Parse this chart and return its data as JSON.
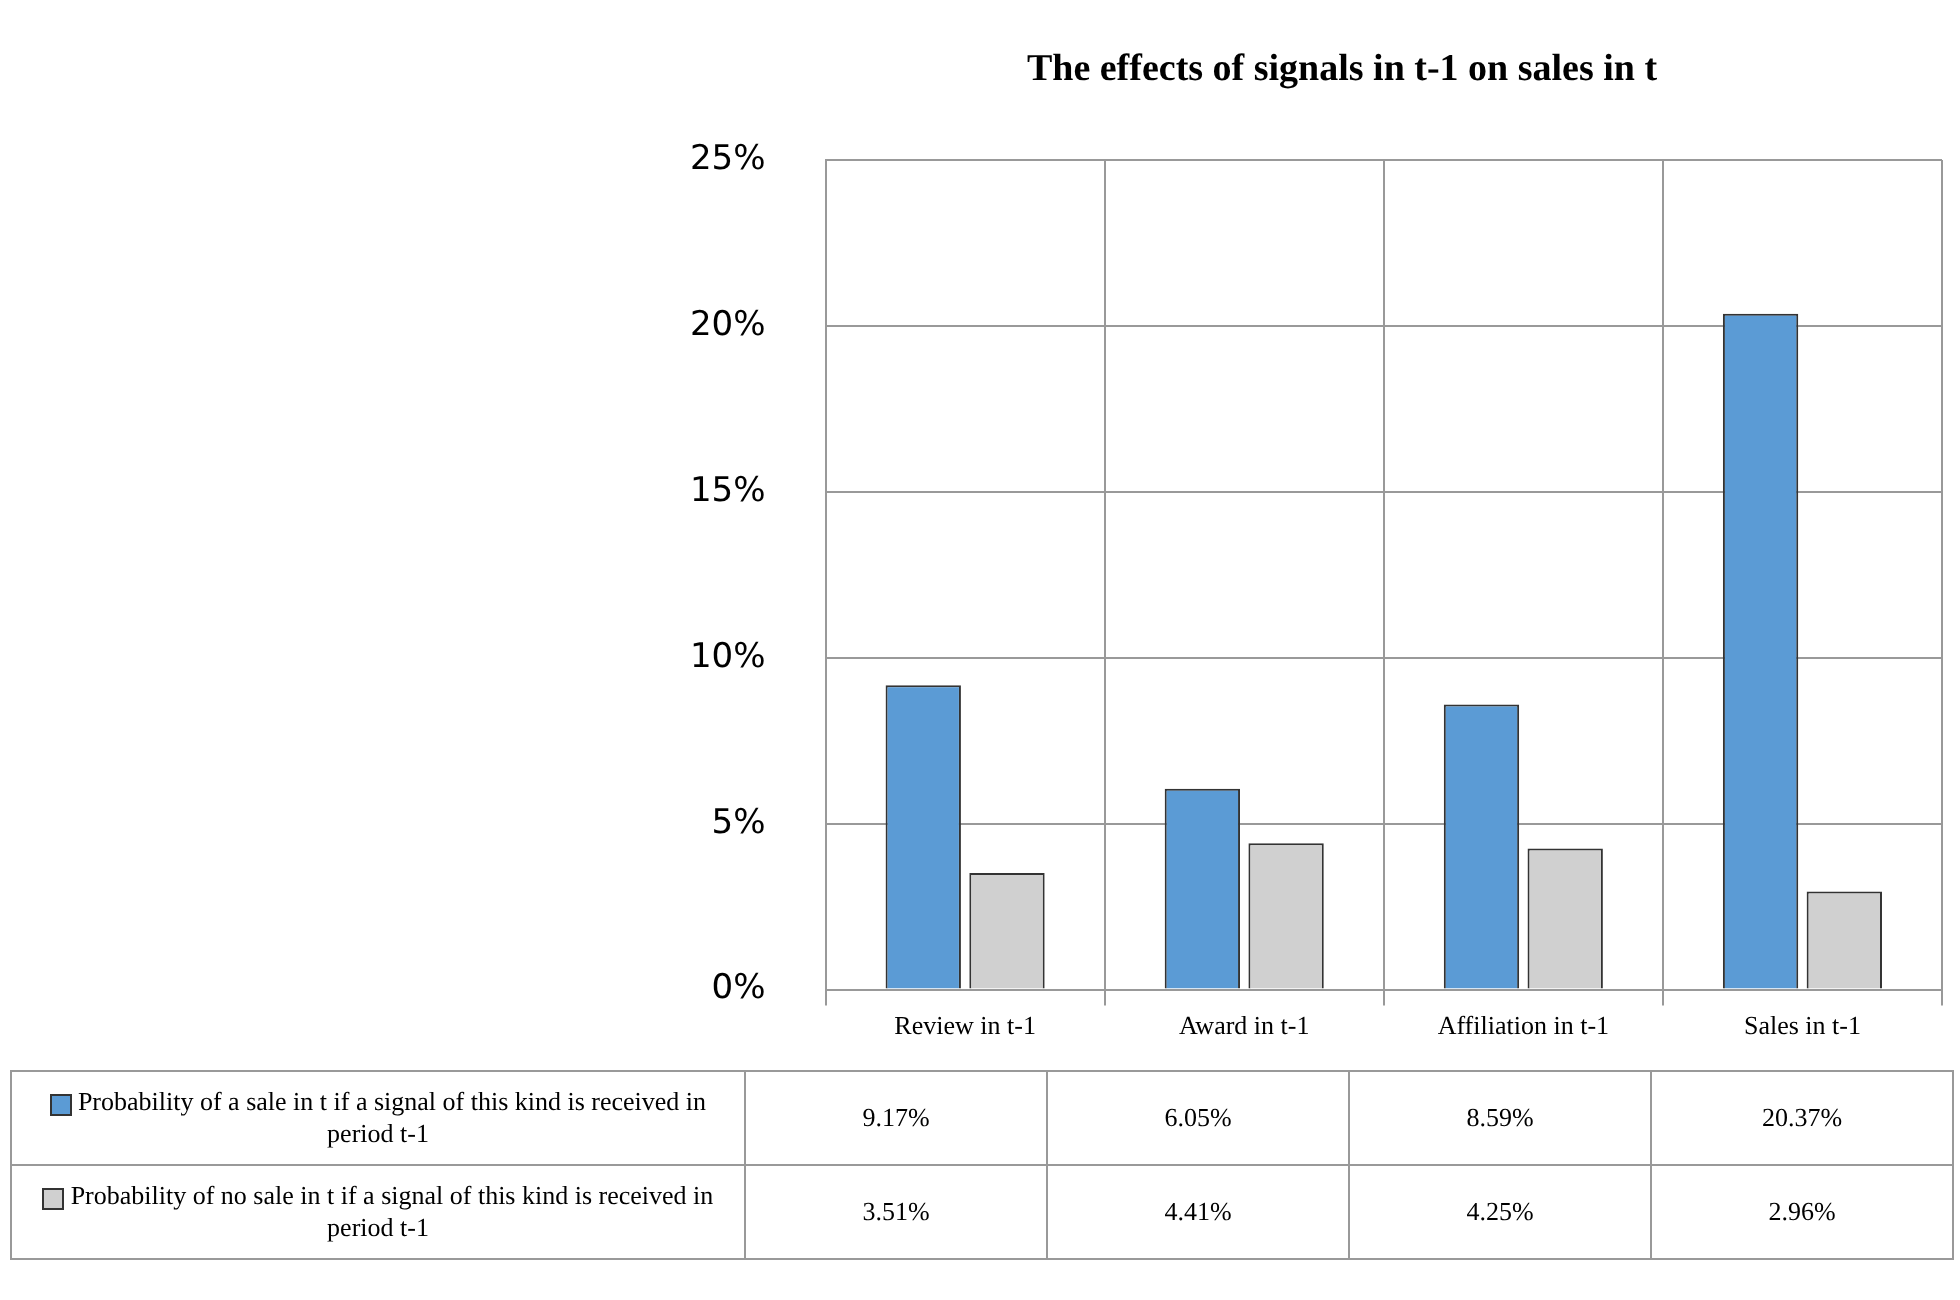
{
  "chart_data": {
    "type": "bar",
    "title": "The effects of signals in t-1 on sales in t",
    "categories": [
      "Review in t-1",
      "Award in t-1",
      "Affiliation in t-1",
      "Sales in t-1"
    ],
    "series": [
      {
        "name": "Probability of a sale in t if a signal of this kind is received in period t-1",
        "color": "#5b9bd5",
        "values": [
          9.17,
          6.05,
          8.59,
          20.37
        ],
        "value_labels": [
          "9.17%",
          "6.05%",
          "8.59%",
          "20.37%"
        ]
      },
      {
        "name": "Probability of no sale in t if a signal of this kind is received in period t-1",
        "color": "#d0d0d0",
        "values": [
          3.51,
          4.41,
          4.25,
          2.96
        ],
        "value_labels": [
          "3.51%",
          "4.41%",
          "4.25%",
          "2.96%"
        ]
      }
    ],
    "ylim": [
      0,
      25
    ],
    "yticks": [
      {
        "value": 0,
        "label": "0%"
      },
      {
        "value": 5,
        "label": "5%"
      },
      {
        "value": 10,
        "label": "10%"
      },
      {
        "value": 15,
        "label": "15%"
      },
      {
        "value": 20,
        "label": "20%"
      },
      {
        "value": 25,
        "label": "25%"
      }
    ],
    "grid": "y",
    "legend": "bottom"
  }
}
